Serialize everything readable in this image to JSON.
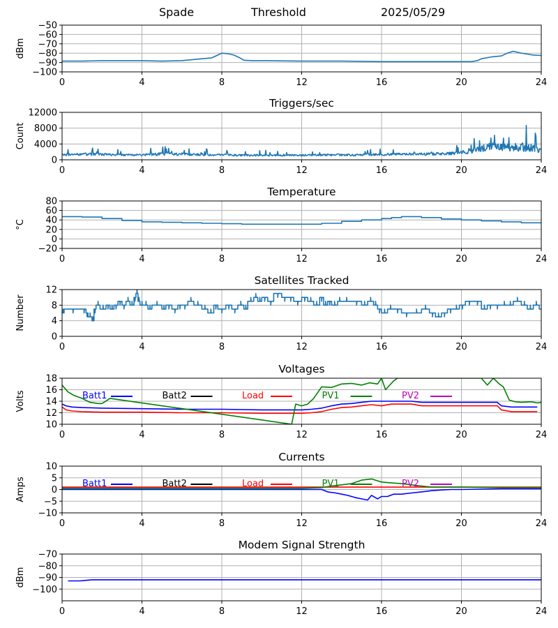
{
  "header": {
    "station": "Spade",
    "label": "Threshold",
    "date": "2025/05/29"
  },
  "colors": {
    "default_line": "#1f77b4",
    "grid": "#b0b0b0",
    "batt1": "#0000ff",
    "batt2": "#000000",
    "load": "#ff0000",
    "pv1": "#008000",
    "pv2": "#bf00bf"
  },
  "chart_data": [
    {
      "type": "line",
      "title": "",
      "ylabel": "dBm",
      "xlabel": "",
      "xlim": [
        0,
        24
      ],
      "xticks": [
        "0",
        "4",
        "8",
        "12",
        "16",
        "20",
        "24"
      ],
      "ylim": [
        -100,
        -50
      ],
      "yticks": [
        "−100",
        "−90",
        "−80",
        "−70",
        "−60",
        "−50"
      ],
      "grid": true,
      "series": [
        {
          "color": "#1f77b4",
          "style": "smooth",
          "x": [
            0,
            0.5,
            1,
            2,
            3,
            4,
            5,
            6,
            6.5,
            7,
            7.5,
            7.8,
            8,
            8.3,
            8.6,
            8.9,
            9.1,
            9.5,
            10,
            12,
            14,
            16,
            18,
            20,
            20.5,
            20.8,
            21,
            21.5,
            22,
            22.3,
            22.6,
            23,
            23.3,
            23.6,
            24
          ],
          "y": [
            -88.5,
            -88.5,
            -88.5,
            -88,
            -88,
            -88,
            -88.5,
            -88,
            -87,
            -86,
            -85,
            -82,
            -80,
            -80.5,
            -82,
            -85,
            -87.5,
            -88,
            -88,
            -88.5,
            -88.5,
            -89,
            -89,
            -89,
            -89,
            -88,
            -86,
            -84,
            -83,
            -80,
            -78,
            -80,
            -81,
            -82,
            -82.5
          ]
        }
      ],
      "legend": []
    },
    {
      "type": "line",
      "title": "Triggers/sec",
      "ylabel": "Count",
      "xlabel": "",
      "xlim": [
        0,
        24
      ],
      "xticks": [
        "0",
        "4",
        "8",
        "12",
        "16",
        "20",
        "24"
      ],
      "ylim": [
        0,
        12500
      ],
      "yticks": [
        "0",
        "4000",
        "8000",
        "12000"
      ],
      "grid": true,
      "series": [
        {
          "color": "#1f77b4",
          "style": "noisy",
          "x": [
            0,
            1,
            2,
            3,
            4,
            5,
            6,
            7,
            8,
            9,
            10,
            11,
            12,
            13,
            14,
            15,
            16,
            17,
            18,
            19,
            19.5,
            20,
            20.5,
            21,
            21.5,
            22,
            22.5,
            23,
            23.5,
            24
          ],
          "y": [
            1300,
            1500,
            1400,
            1300,
            1300,
            1500,
            1500,
            1300,
            1300,
            1200,
            1200,
            1200,
            1200,
            1300,
            1300,
            1300,
            1400,
            1500,
            1500,
            1600,
            1700,
            1900,
            2200,
            3000,
            3400,
            3200,
            3300,
            3300,
            3100,
            2400
          ],
          "amp": [
            500,
            700,
            600,
            500,
            500,
            800,
            700,
            500,
            500,
            500,
            450,
            450,
            450,
            500,
            550,
            550,
            600,
            600,
            650,
            700,
            750,
            900,
            1100,
            1800,
            2200,
            2000,
            2200,
            2400,
            2000,
            1500
          ]
        }
      ],
      "legend": []
    },
    {
      "type": "line",
      "title": "Temperature",
      "ylabel": "°C",
      "xlabel": "",
      "xlim": [
        0,
        24
      ],
      "xticks": [
        "0",
        "4",
        "8",
        "12",
        "16",
        "20",
        "24"
      ],
      "ylim": [
        -20,
        80
      ],
      "yticks": [
        "−20",
        "0",
        "20",
        "40",
        "60",
        "80"
      ],
      "grid": true,
      "series": [
        {
          "color": "#1f77b4",
          "style": "step",
          "x": [
            0,
            1,
            2,
            3,
            4,
            5,
            6,
            7,
            8,
            9,
            10,
            11,
            12,
            13,
            14,
            15,
            16,
            16.5,
            17,
            17.5,
            18,
            19,
            20,
            21,
            22,
            23,
            24
          ],
          "y": [
            47,
            46,
            43,
            39,
            36,
            35,
            34,
            33,
            32,
            31,
            31,
            31,
            31,
            33,
            37,
            40,
            43,
            45,
            47,
            47,
            45,
            42,
            40,
            38,
            36,
            34,
            33
          ]
        }
      ],
      "legend": []
    },
    {
      "type": "line",
      "title": "Satellites Tracked",
      "ylabel": "Number",
      "xlabel": "",
      "xlim": [
        0,
        24
      ],
      "xticks": [
        "0",
        "4",
        "8",
        "12",
        "16",
        "20",
        "24"
      ],
      "ylim": [
        0,
        12
      ],
      "yticks": [
        "0",
        "4",
        "8",
        "12"
      ],
      "grid": true,
      "series": [
        {
          "color": "#1f77b4",
          "style": "step",
          "x": [
            0,
            0.1,
            1,
            1.2,
            1.3,
            1.5,
            1.6,
            1.7,
            1.9,
            2.2,
            2.4,
            2.6,
            2.8,
            3.0,
            3.2,
            3.4,
            3.6,
            3.7,
            3.8,
            3.9,
            4.1,
            4.3,
            4.5,
            5.0,
            5.2,
            5.5,
            5.8,
            6.0,
            6.3,
            6.6,
            7.0,
            7.3,
            7.6,
            7.8,
            8.2,
            8.5,
            8.8,
            9.1,
            9.3,
            9.6,
            9.8,
            10.0,
            10.3,
            10.6,
            11.0,
            11.3,
            11.6,
            12.0,
            12.3,
            12.6,
            12.9,
            13.1,
            13.3,
            13.5,
            13.8,
            14.0,
            14.5,
            15.0,
            15.3,
            15.6,
            15.8,
            16.0,
            16.3,
            16.6,
            17.0,
            17.5,
            18.0,
            18.4,
            18.7,
            19.0,
            19.3,
            19.6,
            19.9,
            20.2,
            20.6,
            21.0,
            21.3,
            21.6,
            22.0,
            22.3,
            22.6,
            23.0,
            23.3,
            23.6,
            23.9
          ],
          "y": [
            6,
            7,
            7,
            6,
            5,
            4,
            7,
            8,
            7,
            8,
            7,
            8,
            9,
            8,
            9,
            8,
            10,
            11,
            9,
            8,
            8,
            7,
            8,
            7,
            8,
            7,
            8,
            8,
            9,
            8,
            7,
            6,
            8,
            7,
            8,
            7,
            8,
            7,
            9,
            10,
            9,
            10,
            9,
            11,
            10,
            10,
            9,
            10,
            9,
            8,
            10,
            8,
            9,
            8,
            9,
            9,
            9,
            8,
            9,
            8,
            7,
            6,
            7,
            7,
            6,
            6,
            7,
            6,
            5,
            6,
            7,
            7,
            8,
            9,
            9,
            7,
            8,
            8,
            8,
            8,
            9,
            8,
            7,
            8,
            7
          ],
          "jitter": 0.6
        }
      ],
      "legend": []
    },
    {
      "type": "line",
      "title": "Voltages",
      "ylabel": "Volts",
      "xlabel": "",
      "xlim": [
        0,
        24
      ],
      "xticks": [
        "0",
        "4",
        "8",
        "12",
        "16",
        "20",
        "24"
      ],
      "ylim": [
        10,
        18
      ],
      "yticks": [
        "10",
        "12",
        "14",
        "16",
        "18"
      ],
      "grid": true,
      "series": [
        {
          "name": "Batt1",
          "color": "#0000ff",
          "style": "smooth",
          "x": [
            0,
            0.2,
            0.5,
            1,
            2,
            4,
            6,
            8,
            10,
            12,
            12.5,
            13,
            13.5,
            14,
            14.5,
            15,
            15.5,
            16,
            16.5,
            17,
            17.5,
            18,
            20,
            21,
            21.8,
            22,
            22.5,
            23,
            23.8
          ],
          "y": [
            13.5,
            13.2,
            13,
            12.9,
            12.8,
            12.7,
            12.6,
            12.6,
            12.5,
            12.5,
            12.6,
            12.8,
            13.2,
            13.5,
            13.6,
            13.8,
            14,
            14,
            14,
            14,
            14,
            13.8,
            13.8,
            13.8,
            13.8,
            13.2,
            13,
            13,
            13
          ]
        },
        {
          "name": "Load",
          "color": "#ff0000",
          "style": "smooth",
          "x": [
            0,
            0.2,
            0.5,
            1,
            2,
            4,
            6,
            8,
            10,
            12,
            12.5,
            13,
            13.5,
            14,
            14.5,
            15,
            15.5,
            16,
            16.5,
            17,
            17.5,
            18,
            20,
            21,
            21.8,
            22,
            22.5,
            23,
            23.8
          ],
          "y": [
            13,
            12.5,
            12.3,
            12.2,
            12.1,
            12.1,
            12,
            12,
            11.9,
            11.9,
            12,
            12.2,
            12.6,
            12.9,
            13,
            13.2,
            13.4,
            13.2,
            13.5,
            13.5,
            13.5,
            13.2,
            13.2,
            13.2,
            13.2,
            12.5,
            12.2,
            12.2,
            12.2
          ]
        },
        {
          "name": "PV1",
          "color": "#008000",
          "style": "line",
          "x": [
            0,
            0.3,
            0.6,
            1.0,
            1.4,
            1.8,
            2.0,
            2.4,
            11.5,
            11.7,
            12.0,
            12.3,
            12.6,
            13.0,
            13.5,
            14.0,
            14.5,
            15.0,
            15.4,
            15.8,
            16.0,
            16.2,
            16.6,
            16.8,
            21,
            21.3,
            21.6,
            21.9,
            22.1,
            22.4,
            22.7,
            23.0,
            23.5,
            23.8,
            24
          ],
          "y": [
            16.8,
            15.6,
            15,
            14.5,
            13.8,
            13.6,
            13.6,
            14.5,
            10,
            13.5,
            13.2,
            13.5,
            14.5,
            16.5,
            16.4,
            17,
            17.1,
            16.8,
            17.2,
            17,
            18,
            16,
            17.5,
            18,
            18,
            16.8,
            18,
            17,
            16.5,
            14.2,
            13.9,
            13.8,
            13.9,
            13.7,
            13.8
          ]
        },
        {
          "name": "Batt2",
          "color": "#000000",
          "style": "hidden",
          "x": [],
          "y": []
        },
        {
          "name": "PV2",
          "color": "#bf00bf",
          "style": "hidden",
          "x": [],
          "y": []
        }
      ],
      "legend": [
        "Batt1",
        "Batt2",
        "Load",
        "PV1",
        "PV2"
      ],
      "legend_placement": "upper, single row"
    },
    {
      "type": "line",
      "title": "Currents",
      "ylabel": "Amps",
      "xlabel": "",
      "xlim": [
        0,
        24
      ],
      "xticks": [
        "0",
        "4",
        "8",
        "12",
        "16",
        "20",
        "24"
      ],
      "ylim": [
        -10,
        10
      ],
      "yticks": [
        "−10",
        "−5",
        "0",
        "5",
        "10"
      ],
      "grid": true,
      "series": [
        {
          "name": "Load",
          "color": "#ff0000",
          "style": "line",
          "x": [
            0,
            2,
            4,
            6,
            8,
            10,
            12,
            14,
            16,
            18,
            20,
            22,
            24
          ],
          "y": [
            1,
            1,
            1,
            1,
            1,
            1,
            1,
            1,
            1,
            1,
            1,
            1,
            1
          ]
        },
        {
          "name": "PV1",
          "color": "#008000",
          "style": "line",
          "x": [
            0,
            2,
            4,
            6,
            8,
            10,
            12,
            13,
            13.5,
            14,
            14.5,
            15,
            15.5,
            16,
            16.5,
            17,
            17.5,
            18,
            18.5,
            19,
            20,
            22,
            24
          ],
          "y": [
            0.5,
            0.5,
            0.5,
            0.5,
            0.5,
            0.5,
            0.5,
            0.8,
            1.5,
            2,
            2.5,
            4,
            4.5,
            3.2,
            2.8,
            2.5,
            2,
            1.5,
            1,
            1,
            1,
            0.8,
            0.8
          ]
        },
        {
          "name": "Batt1",
          "color": "#0000ff",
          "style": "line",
          "x": [
            0,
            2,
            4,
            6,
            8,
            10,
            12,
            13,
            13.3,
            13.7,
            14,
            14.3,
            14.7,
            15,
            15.3,
            15.5,
            15.8,
            16,
            16.3,
            16.6,
            17,
            17.5,
            18,
            18.5,
            19,
            19.5,
            20,
            22,
            24
          ],
          "y": [
            0,
            0,
            0,
            0,
            0,
            0,
            0,
            0,
            -1,
            -1.5,
            -2,
            -2.5,
            -3.5,
            -4,
            -4.5,
            -2.5,
            -4,
            -3,
            -3,
            -2,
            -2,
            -1.5,
            -1,
            -0.5,
            -0.2,
            0,
            0,
            0.3,
            0.3
          ]
        },
        {
          "name": "Batt2",
          "color": "#000000",
          "style": "hidden",
          "x": [],
          "y": []
        },
        {
          "name": "PV2",
          "color": "#bf00bf",
          "style": "hidden",
          "x": [],
          "y": []
        }
      ],
      "legend": [
        "Batt1",
        "Batt2",
        "Load",
        "PV1",
        "PV2"
      ],
      "legend_placement": "upper, single row"
    },
    {
      "type": "line",
      "title": "Modem Signal Strength",
      "ylabel": "dBm",
      "xlabel": "",
      "xlim": [
        0,
        24
      ],
      "xticks": [
        "0",
        "4",
        "8",
        "12",
        "16",
        "20",
        "24"
      ],
      "ylim": [
        -110,
        -70
      ],
      "yticks": [
        "−100",
        "−90",
        "−80",
        "−70"
      ],
      "grid": true,
      "series": [
        {
          "color": "#0000ff",
          "style": "line",
          "x": [
            0.3,
            0.6,
            0.9,
            1.2,
            1.5,
            24
          ],
          "y": [
            -93,
            -93,
            -93,
            -92.5,
            -92,
            -92
          ]
        }
      ],
      "legend": []
    }
  ]
}
